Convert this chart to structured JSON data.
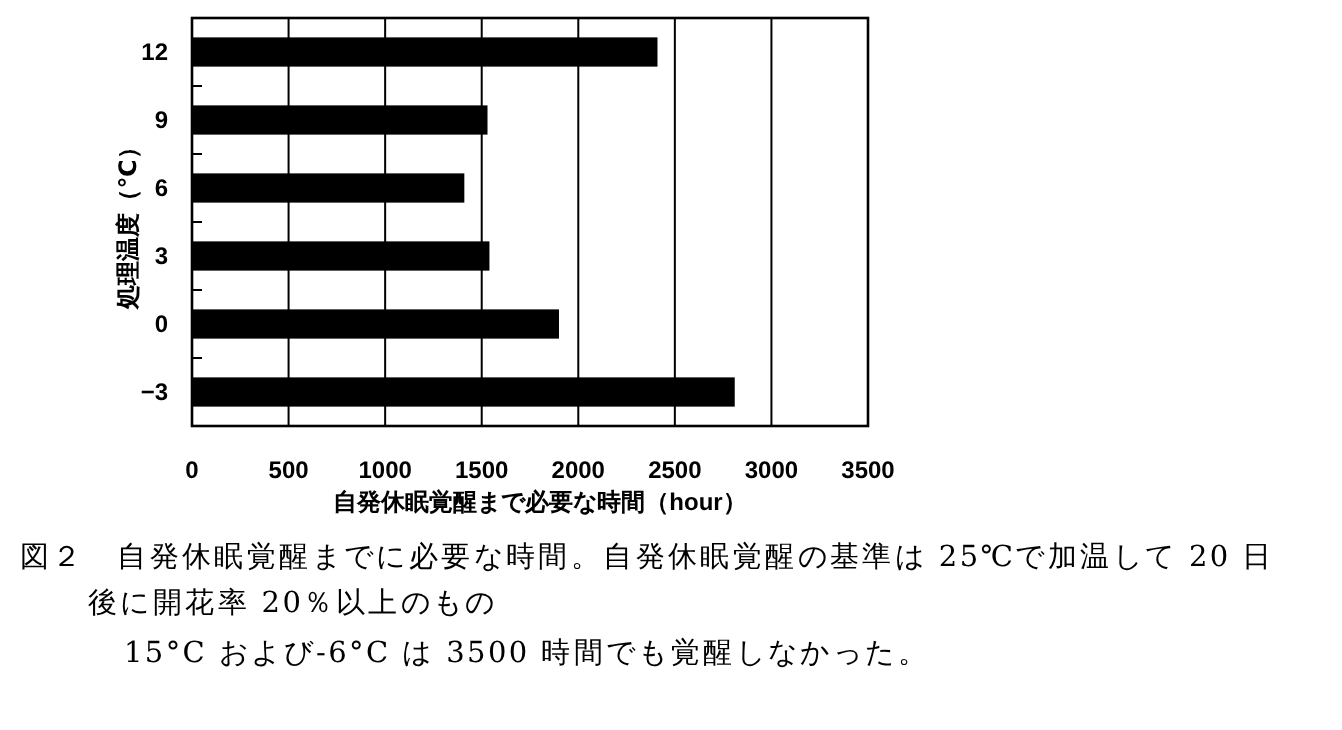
{
  "chart_data": {
    "type": "bar",
    "orientation": "horizontal",
    "categories": [
      "12",
      "9",
      "6",
      "3",
      "0",
      "−3"
    ],
    "values": [
      2410,
      1530,
      1410,
      1540,
      1900,
      2810
    ],
    "color": "#000000",
    "xlim": [
      0,
      3500
    ],
    "xticks": [
      0,
      500,
      1000,
      1500,
      2000,
      2500,
      3000,
      3500
    ],
    "grid": "x",
    "xlabel": "自発休眠覚醒まで必要な時間（hour）",
    "ylabel": "処理温度（℃）",
    "annotations": [
      "図２　自発休眠覚醒までに必要な時間。自発休眠覚醒の基準は 25℃で加温して 20 日後に開花率 20％以上のもの",
      "15°C および-6°C は 3500 時間でも覚醒しなかった。"
    ]
  }
}
